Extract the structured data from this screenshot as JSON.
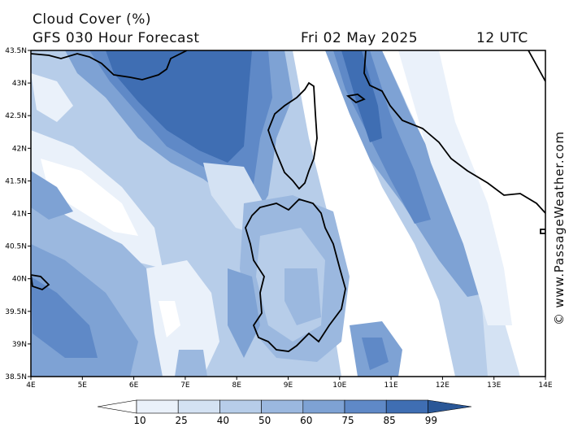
{
  "header": {
    "title": "Cloud Cover (%)",
    "forecast": "GFS 030 Hour Forecast",
    "date": "Fri 02 May 2025",
    "time": "12 UTC"
  },
  "credit": "© www.PassageWeather.com",
  "axes": {
    "lat_labels": [
      "43.5N",
      "43N",
      "42.5N",
      "42N",
      "41.5N",
      "41N",
      "40.5N",
      "40N",
      "39.5N",
      "39N",
      "38.5N"
    ],
    "lon_labels": [
      "4E",
      "5E",
      "6E",
      "7E",
      "8E",
      "9E",
      "10E",
      "11E",
      "12E",
      "13E",
      "14E"
    ]
  },
  "legend": {
    "labels": [
      "10",
      "25",
      "40",
      "50",
      "60",
      "75",
      "85",
      "99"
    ],
    "colors": [
      "#ffffff",
      "#eaf1fa",
      "#d4e2f3",
      "#b7cde9",
      "#9bb8df",
      "#7ea2d4",
      "#5f89c7",
      "#3f6eb3",
      "#2a5797"
    ]
  },
  "colors": {
    "coast": "#000000",
    "frame": "#000000"
  }
}
